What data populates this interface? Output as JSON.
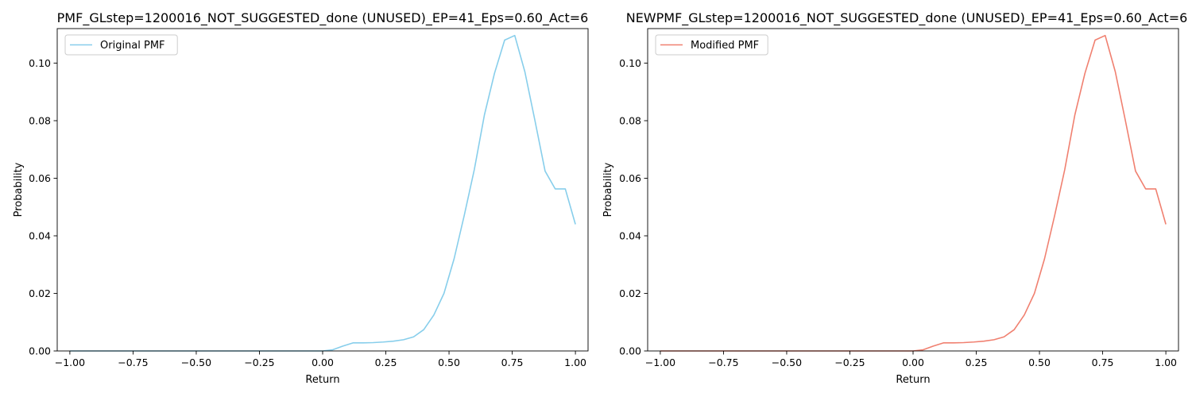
{
  "chart_data": [
    {
      "type": "line",
      "title": "PMF_GLstep=1200016_NOT_SUGGESTED_done (UNUSED)_EP=41_Eps=0.60_Act=6",
      "xlabel": "Return",
      "ylabel": "Probability",
      "xlim": [
        -1.05,
        1.05
      ],
      "ylim": [
        0,
        0.112
      ],
      "xticks": [
        -1.0,
        -0.75,
        -0.5,
        -0.25,
        0.0,
        0.25,
        0.5,
        0.75,
        1.0
      ],
      "xtick_labels": [
        "−1.00",
        "−0.75",
        "−0.50",
        "−0.25",
        "0.00",
        "0.25",
        "0.50",
        "0.75",
        "1.00"
      ],
      "yticks": [
        0.0,
        0.02,
        0.04,
        0.06,
        0.08,
        0.1
      ],
      "ytick_labels": [
        "0.00",
        "0.02",
        "0.04",
        "0.06",
        "0.08",
        "0.10"
      ],
      "legend_position": "top-left",
      "series": [
        {
          "name": "Original PMF",
          "color": "#87ceeb",
          "x": [
            -1.0,
            -0.96,
            -0.92,
            -0.88,
            -0.84,
            -0.8,
            -0.76,
            -0.72,
            -0.68,
            -0.64,
            -0.6,
            -0.56,
            -0.52,
            -0.48,
            -0.44,
            -0.4,
            -0.36,
            -0.32,
            -0.28,
            -0.24,
            -0.2,
            -0.16,
            -0.12,
            -0.08,
            -0.04,
            0.0,
            0.04,
            0.08,
            0.12,
            0.16,
            0.2,
            0.24,
            0.28,
            0.32,
            0.36,
            0.4,
            0.44,
            0.48,
            0.52,
            0.56,
            0.6,
            0.64,
            0.68,
            0.72,
            0.76,
            0.8,
            0.84,
            0.88,
            0.92,
            0.96,
            1.0
          ],
          "y": [
            0,
            0,
            0,
            0,
            0,
            0,
            0,
            0,
            0,
            0,
            0,
            0,
            0,
            0,
            0,
            0,
            0,
            0,
            0,
            0,
            0,
            0,
            0,
            0,
            0,
            0,
            0.0004,
            0.0017,
            0.0028,
            0.0028,
            0.0029,
            0.0031,
            0.0034,
            0.0039,
            0.0049,
            0.0074,
            0.0125,
            0.02,
            0.032,
            0.047,
            0.063,
            0.082,
            0.0965,
            0.108,
            0.1096,
            0.097,
            0.08,
            0.0625,
            0.0563,
            0.0563,
            0.044
          ]
        }
      ]
    },
    {
      "type": "line",
      "title": "NEWPMF_GLstep=1200016_NOT_SUGGESTED_done (UNUSED)_EP=41_Eps=0.60_Act=6",
      "xlabel": "Return",
      "ylabel": "Probability",
      "xlim": [
        -1.05,
        1.05
      ],
      "ylim": [
        0,
        0.112
      ],
      "xticks": [
        -1.0,
        -0.75,
        -0.5,
        -0.25,
        0.0,
        0.25,
        0.5,
        0.75,
        1.0
      ],
      "xtick_labels": [
        "−1.00",
        "−0.75",
        "−0.50",
        "−0.25",
        "0.00",
        "0.25",
        "0.50",
        "0.75",
        "1.00"
      ],
      "yticks": [
        0.0,
        0.02,
        0.04,
        0.06,
        0.08,
        0.1
      ],
      "ytick_labels": [
        "0.00",
        "0.02",
        "0.04",
        "0.06",
        "0.08",
        "0.10"
      ],
      "legend_position": "top-left",
      "series": [
        {
          "name": "Modified PMF",
          "color": "#f08070",
          "x": [
            -1.0,
            -0.96,
            -0.92,
            -0.88,
            -0.84,
            -0.8,
            -0.76,
            -0.72,
            -0.68,
            -0.64,
            -0.6,
            -0.56,
            -0.52,
            -0.48,
            -0.44,
            -0.4,
            -0.36,
            -0.32,
            -0.28,
            -0.24,
            -0.2,
            -0.16,
            -0.12,
            -0.08,
            -0.04,
            0.0,
            0.04,
            0.08,
            0.12,
            0.16,
            0.2,
            0.24,
            0.28,
            0.32,
            0.36,
            0.4,
            0.44,
            0.48,
            0.52,
            0.56,
            0.6,
            0.64,
            0.68,
            0.72,
            0.76,
            0.8,
            0.84,
            0.88,
            0.92,
            0.96,
            1.0
          ],
          "y": [
            0,
            0,
            0,
            0,
            0,
            0,
            0,
            0,
            0,
            0,
            0,
            0,
            0,
            0,
            0,
            0,
            0,
            0,
            0,
            0,
            0,
            0,
            0,
            0,
            0,
            0,
            0.0004,
            0.0017,
            0.0028,
            0.0028,
            0.0029,
            0.0031,
            0.0034,
            0.0039,
            0.0049,
            0.0074,
            0.0125,
            0.02,
            0.032,
            0.047,
            0.063,
            0.082,
            0.0965,
            0.108,
            0.1096,
            0.097,
            0.08,
            0.0625,
            0.0563,
            0.0563,
            0.044
          ]
        }
      ]
    }
  ]
}
